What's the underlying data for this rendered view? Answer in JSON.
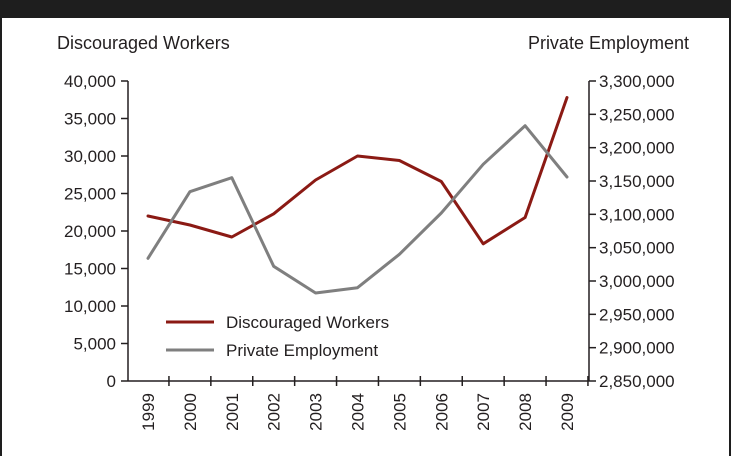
{
  "chart_data": {
    "type": "line",
    "x": [
      "1999",
      "2000",
      "2001",
      "2002",
      "2003",
      "2004",
      "2005",
      "2006",
      "2007",
      "2008",
      "2009"
    ],
    "y_left": {
      "label": "Discouraged Workers",
      "range": [
        0,
        40000
      ],
      "ticks": [
        "0",
        "5,000",
        "10,000",
        "15,000",
        "20,000",
        "25,000",
        "30,000",
        "35,000",
        "40,000"
      ]
    },
    "y_right": {
      "label": "Private Employment",
      "range": [
        2850000,
        3300000
      ],
      "ticks": [
        "2,850,000",
        "2,900,000",
        "2,950,000",
        "3,000,000",
        "3,050,000",
        "3,100,000",
        "3,150,000",
        "3,200,000",
        "3,250,000",
        "3,300,000"
      ]
    },
    "series": [
      {
        "name": "Discouraged Workers",
        "axis": "left",
        "color": "#8b1a14",
        "values": [
          22000,
          20800,
          19200,
          22300,
          26800,
          30000,
          29400,
          26600,
          18300,
          21800,
          37800
        ]
      },
      {
        "name": "Private Employment",
        "axis": "right",
        "color": "#7f7f7f",
        "values": [
          3034000,
          3134000,
          3155000,
          3022000,
          2982000,
          2990000,
          3040000,
          3102000,
          3175000,
          3233000,
          3156000
        ]
      }
    ],
    "legend": {
      "position": "bottom-left",
      "entries": [
        "Discouraged Workers",
        "Private Employment"
      ]
    },
    "grid": false
  }
}
